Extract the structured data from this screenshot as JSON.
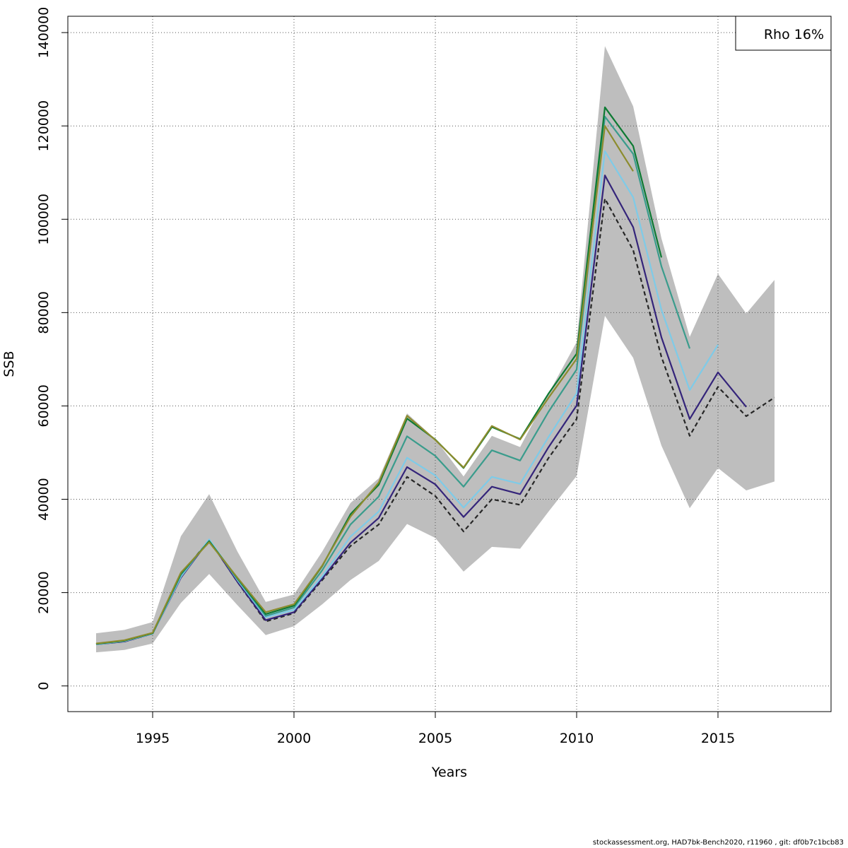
{
  "chart_data": {
    "type": "line",
    "xlabel": "Years",
    "ylabel": "SSB",
    "xlim": [
      1992,
      2019
    ],
    "ylim": [
      -5500,
      143500
    ],
    "x_ticks": [
      1995,
      2000,
      2005,
      2010,
      2015
    ],
    "y_ticks": [
      0,
      20000,
      40000,
      60000,
      80000,
      100000,
      120000,
      140000
    ],
    "grid": true,
    "legend_text": "Rho 16%",
    "legend_position": "top-right",
    "confidence_band": {
      "color": "#bebebe",
      "x": [
        1993,
        1994,
        1995,
        1996,
        1997,
        1998,
        1999,
        2000,
        2001,
        2002,
        2003,
        2004,
        2005,
        2006,
        2007,
        2008,
        2009,
        2010,
        2011,
        2012,
        2013,
        2014,
        2015,
        2016,
        2017
      ],
      "lower": [
        7200,
        7700,
        9100,
        17800,
        24000,
        17300,
        10900,
        12800,
        17500,
        22700,
        26800,
        34700,
        31700,
        24500,
        29800,
        29400,
        37300,
        45000,
        79300,
        70300,
        51500,
        38100,
        46700,
        41900,
        43800
      ],
      "upper": [
        11300,
        12000,
        13700,
        32100,
        41100,
        28800,
        18000,
        19600,
        28800,
        39200,
        44500,
        58400,
        52900,
        44900,
        53600,
        51200,
        62600,
        73700,
        137100,
        124200,
        95900,
        74800,
        88300,
        79800,
        87000
      ]
    },
    "series": [
      {
        "color": "#262626",
        "dashed": true,
        "x": [
          1993,
          1994,
          1995,
          1996,
          1997,
          1998,
          1999,
          2000,
          2001,
          2002,
          2003,
          2004,
          2005,
          2006,
          2007,
          2008,
          2009,
          2010,
          2011,
          2012,
          2013,
          2014,
          2015,
          2016,
          2017
        ],
        "y": [
          8900,
          9500,
          11200,
          23800,
          31300,
          22300,
          13800,
          15600,
          22700,
          30000,
          34600,
          44800,
          40700,
          33100,
          40000,
          38800,
          48800,
          57200,
          104400,
          93400,
          70500,
          53600,
          64100,
          57800,
          61800
        ]
      },
      {
        "color": "#34247a",
        "dashed": false,
        "x": [
          1993,
          1994,
          1995,
          1996,
          1997,
          1998,
          1999,
          2000,
          2001,
          2002,
          2003,
          2004,
          2005,
          2006,
          2007,
          2008,
          2009,
          2010,
          2011,
          2012,
          2013,
          2014,
          2015,
          2016
        ],
        "y": [
          8900,
          9500,
          11200,
          23200,
          31300,
          22300,
          14100,
          15800,
          23000,
          30700,
          36000,
          46900,
          43200,
          36200,
          42700,
          41100,
          51100,
          60100,
          109400,
          98300,
          74700,
          57200,
          67200,
          59800
        ]
      },
      {
        "color": "#7ecbe8",
        "dashed": false,
        "x": [
          1993,
          1994,
          1995,
          1996,
          1997,
          1998,
          1999,
          2000,
          2001,
          2002,
          2003,
          2004,
          2005,
          2006,
          2007,
          2008,
          2009,
          2010,
          2011,
          2012,
          2013,
          2014,
          2015
        ],
        "y": [
          8900,
          9600,
          11200,
          23400,
          31400,
          22700,
          14700,
          16300,
          23500,
          32000,
          37400,
          48900,
          45100,
          38200,
          44800,
          43300,
          53300,
          62700,
          114600,
          104700,
          80600,
          63400,
          73100
        ]
      },
      {
        "color": "#3a9c8c",
        "dashed": false,
        "x": [
          1993,
          1994,
          1995,
          1996,
          1997,
          1998,
          1999,
          2000,
          2001,
          2002,
          2003,
          2004,
          2005,
          2006,
          2007,
          2008,
          2009,
          2010,
          2011,
          2012,
          2013,
          2014
        ],
        "y": [
          9000,
          9700,
          11300,
          23800,
          31100,
          22900,
          15000,
          16800,
          24800,
          34600,
          40600,
          53500,
          49300,
          42700,
          50500,
          48300,
          58700,
          67800,
          122000,
          114000,
          89900,
          72300
        ]
      },
      {
        "color": "#0d7a33",
        "dashed": false,
        "x": [
          1993,
          1994,
          1995,
          1996,
          1997,
          1998,
          1999,
          2000,
          2001,
          2002,
          2003,
          2004,
          2005,
          2006,
          2007,
          2008,
          2009,
          2010,
          2011,
          2012,
          2013
        ],
        "y": [
          9000,
          9700,
          11300,
          24100,
          31000,
          23100,
          15400,
          17200,
          25700,
          36800,
          43100,
          57300,
          52800,
          46700,
          55500,
          52900,
          62600,
          71200,
          124000,
          115700,
          91800
        ]
      },
      {
        "color": "#8c8c2e",
        "dashed": false,
        "x": [
          1993,
          1994,
          1995,
          1996,
          1997,
          1998,
          1999,
          2000,
          2001,
          2002,
          2003,
          2004,
          2005,
          2006,
          2007,
          2008,
          2009,
          2010,
          2011,
          2012
        ],
        "y": [
          9100,
          9800,
          11400,
          24300,
          30800,
          23200,
          15800,
          17500,
          25800,
          36300,
          43600,
          57900,
          52700,
          46800,
          55700,
          52800,
          61700,
          70100,
          120000,
          110300
        ]
      }
    ]
  },
  "footer": "stockassessment.org, HAD7bk-Bench2020, r11960 , git: df0b7c1bcb83"
}
